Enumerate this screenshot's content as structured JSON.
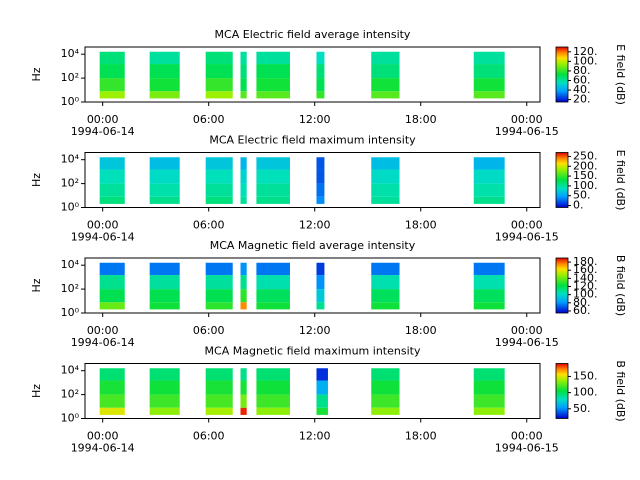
{
  "chart_data": [
    {
      "type": "spectrogram",
      "title": "MCA  Electric field average intensity",
      "ylabel": "Hz",
      "clabel": "E field (dB)",
      "log_y": true,
      "xlim": [
        -1,
        24.75
      ],
      "ylim": [
        1,
        40000
      ],
      "clim": [
        15,
        130
      ],
      "xticks": [
        {
          "value": 0,
          "label": "00:00"
        },
        {
          "value": 6,
          "label": "06:00"
        },
        {
          "value": 12,
          "label": "12:00"
        },
        {
          "value": 18,
          "label": "18:00"
        },
        {
          "value": 24,
          "label": "00:00"
        }
      ],
      "xdates": [
        {
          "value": 0,
          "label": "1994-06-14"
        },
        {
          "value": 24,
          "label": "1994-06-15"
        }
      ],
      "yticks": [
        {
          "value": 1,
          "label": "10⁰"
        },
        {
          "value": 100,
          "label": "10²"
        },
        {
          "value": 10000,
          "label": "10⁴"
        }
      ],
      "cticks": [
        {
          "value": 20,
          "label": "20."
        },
        {
          "value": 40,
          "label": "40."
        },
        {
          "value": 60,
          "label": "60."
        },
        {
          "value": 80,
          "label": "80."
        },
        {
          "value": 100,
          "label": "100."
        },
        {
          "value": 120,
          "label": "120."
        }
      ],
      "freq_edges": [
        2,
        8,
        100,
        1500,
        16000
      ],
      "segments": [
        [
          -0.17,
          1.25
        ],
        [
          2.66,
          4.36
        ],
        [
          5.83,
          7.36
        ],
        [
          7.8,
          8.15
        ],
        [
          8.7,
          10.6
        ],
        [
          12.1,
          12.55
        ],
        [
          15.2,
          16.8
        ],
        [
          21.0,
          22.75
        ]
      ],
      "z": [
        [
          95,
          80,
          70,
          65
        ],
        [
          90,
          75,
          70,
          60
        ],
        [
          95,
          80,
          70,
          65
        ],
        [
          85,
          70,
          65,
          60
        ],
        [
          85,
          75,
          70,
          60
        ],
        [
          80,
          70,
          65,
          55
        ],
        [
          85,
          75,
          65,
          60
        ],
        [
          85,
          75,
          65,
          60
        ]
      ]
    },
    {
      "type": "spectrogram",
      "title": "MCA  Electric field maximum intensity",
      "ylabel": "Hz",
      "clabel": "E field (dB)",
      "log_y": true,
      "xlim": [
        -1,
        24.75
      ],
      "ylim": [
        1,
        40000
      ],
      "clim": [
        -10,
        270
      ],
      "xticks": [
        {
          "value": 0,
          "label": "00:00"
        },
        {
          "value": 6,
          "label": "06:00"
        },
        {
          "value": 12,
          "label": "12:00"
        },
        {
          "value": 18,
          "label": "18:00"
        },
        {
          "value": 24,
          "label": "00:00"
        }
      ],
      "xdates": [
        {
          "value": 0,
          "label": "1994-06-14"
        },
        {
          "value": 24,
          "label": "1994-06-15"
        }
      ],
      "yticks": [
        {
          "value": 1,
          "label": "10⁰"
        },
        {
          "value": 100,
          "label": "10²"
        },
        {
          "value": 10000,
          "label": "10⁴"
        }
      ],
      "cticks": [
        {
          "value": 0,
          "label": "0."
        },
        {
          "value": 50,
          "label": "50."
        },
        {
          "value": 100,
          "label": "100."
        },
        {
          "value": 150,
          "label": "150."
        },
        {
          "value": 200,
          "label": "200."
        },
        {
          "value": 250,
          "label": "250."
        }
      ],
      "freq_edges": [
        2,
        8,
        100,
        1500,
        16000
      ],
      "segments": [
        [
          -0.17,
          1.25
        ],
        [
          2.66,
          4.36
        ],
        [
          5.83,
          7.36
        ],
        [
          7.8,
          8.15
        ],
        [
          8.7,
          10.6
        ],
        [
          12.1,
          12.55
        ],
        [
          15.2,
          16.8
        ],
        [
          21.0,
          22.75
        ]
      ],
      "z": [
        [
          110,
          100,
          90,
          70
        ],
        [
          105,
          95,
          85,
          65
        ],
        [
          110,
          100,
          90,
          70
        ],
        [
          100,
          90,
          80,
          60
        ],
        [
          105,
          100,
          90,
          70
        ],
        [
          40,
          30,
          20,
          20
        ],
        [
          100,
          95,
          85,
          65
        ],
        [
          105,
          95,
          85,
          60
        ]
      ]
    },
    {
      "type": "spectrogram",
      "title": "MCA  Magnetic field average intensity",
      "ylabel": "Hz",
      "clabel": "B field (dB)",
      "log_y": true,
      "xlim": [
        -1,
        24.75
      ],
      "ylim": [
        1,
        40000
      ],
      "clim": [
        55,
        190
      ],
      "xticks": [
        {
          "value": 0,
          "label": "00:00"
        },
        {
          "value": 6,
          "label": "06:00"
        },
        {
          "value": 12,
          "label": "12:00"
        },
        {
          "value": 18,
          "label": "18:00"
        },
        {
          "value": 24,
          "label": "00:00"
        }
      ],
      "xdates": [
        {
          "value": 0,
          "label": "1994-06-14"
        },
        {
          "value": 24,
          "label": "1994-06-15"
        }
      ],
      "yticks": [
        {
          "value": 1,
          "label": "10⁰"
        },
        {
          "value": 100,
          "label": "10²"
        },
        {
          "value": 10000,
          "label": "10⁴"
        }
      ],
      "cticks": [
        {
          "value": 60,
          "label": "60."
        },
        {
          "value": 80,
          "label": "80."
        },
        {
          "value": 100,
          "label": "100."
        },
        {
          "value": 120,
          "label": "120."
        },
        {
          "value": 140,
          "label": "140."
        },
        {
          "value": 160,
          "label": "160."
        },
        {
          "value": 180,
          "label": "180."
        }
      ],
      "freq_edges": [
        2,
        8,
        100,
        1500,
        16000
      ],
      "segments": [
        [
          -0.17,
          1.25
        ],
        [
          2.66,
          4.36
        ],
        [
          5.83,
          7.36
        ],
        [
          7.8,
          8.15
        ],
        [
          8.7,
          10.6
        ],
        [
          12.1,
          12.55
        ],
        [
          15.2,
          16.8
        ],
        [
          21.0,
          22.75
        ]
      ],
      "z": [
        [
          140,
          120,
          110,
          75
        ],
        [
          125,
          120,
          108,
          75
        ],
        [
          130,
          120,
          108,
          75
        ],
        [
          175,
          130,
          110,
          80
        ],
        [
          125,
          118,
          105,
          75
        ],
        [
          110,
          95,
          80,
          65
        ],
        [
          125,
          118,
          105,
          75
        ],
        [
          125,
          118,
          105,
          75
        ]
      ]
    },
    {
      "type": "spectrogram",
      "title": "MCA  Magnetic field maximum intensity",
      "ylabel": "Hz",
      "clabel": "B field (dB)",
      "log_y": true,
      "xlim": [
        -1,
        24.75
      ],
      "ylim": [
        1,
        40000
      ],
      "clim": [
        20,
        190
      ],
      "xticks": [
        {
          "value": 0,
          "label": "00:00"
        },
        {
          "value": 6,
          "label": "06:00"
        },
        {
          "value": 12,
          "label": "12:00"
        },
        {
          "value": 18,
          "label": "18:00"
        },
        {
          "value": 24,
          "label": "00:00"
        }
      ],
      "xdates": [
        {
          "value": 0,
          "label": "1994-06-14"
        },
        {
          "value": 24,
          "label": "1994-06-15"
        }
      ],
      "yticks": [
        {
          "value": 1,
          "label": "10⁰"
        },
        {
          "value": 100,
          "label": "10²"
        },
        {
          "value": 10000,
          "label": "10⁴"
        }
      ],
      "cticks": [
        {
          "value": 50,
          "label": "50."
        },
        {
          "value": 100,
          "label": "100."
        },
        {
          "value": 150,
          "label": "150."
        }
      ],
      "freq_edges": [
        2,
        8,
        100,
        1500,
        16000
      ],
      "segments": [
        [
          -0.17,
          1.25
        ],
        [
          2.66,
          4.36
        ],
        [
          5.83,
          7.36
        ],
        [
          7.8,
          8.15
        ],
        [
          8.7,
          10.6
        ],
        [
          12.1,
          12.75
        ],
        [
          15.2,
          16.8
        ],
        [
          21.0,
          22.75
        ]
      ],
      "z": [
        [
          150,
          120,
          110,
          95
        ],
        [
          135,
          118,
          108,
          95
        ],
        [
          140,
          120,
          110,
          95
        ],
        [
          185,
          130,
          110,
          90
        ],
        [
          135,
          118,
          108,
          95
        ],
        [
          110,
          90,
          60,
          30
        ],
        [
          135,
          118,
          108,
          95
        ],
        [
          135,
          118,
          108,
          95
        ]
      ]
    }
  ]
}
